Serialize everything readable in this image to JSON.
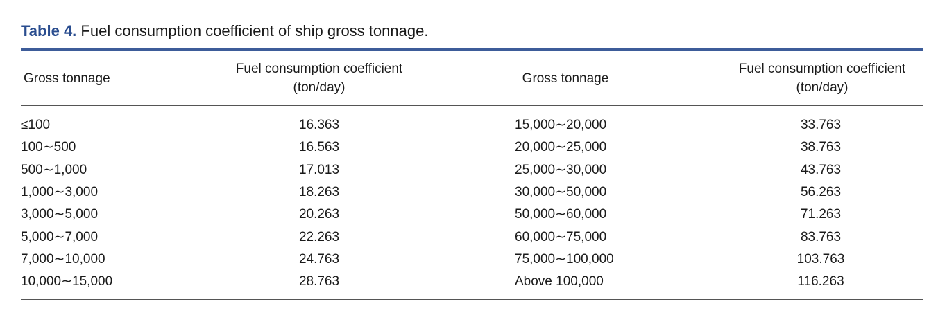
{
  "caption": {
    "label": "Table 4.",
    "text": "Fuel consumption coefficient of ship gross tonnage."
  },
  "headers": {
    "col1": "Gross tonnage",
    "col2_line1": "Fuel consumption coefficient",
    "col2_line2": "(ton/day)",
    "col3": "Gross tonnage",
    "col4_line1": "Fuel consumption coefficient",
    "col4_line2": "(ton/day)"
  },
  "rows": [
    {
      "tonnage_a": "≤100",
      "coef_a": "16.363",
      "tonnage_b": "15,000∼20,000",
      "coef_b": "33.763"
    },
    {
      "tonnage_a": "100∼500",
      "coef_a": "16.563",
      "tonnage_b": "20,000∼25,000",
      "coef_b": "38.763"
    },
    {
      "tonnage_a": "500∼1,000",
      "coef_a": "17.013",
      "tonnage_b": "25,000∼30,000",
      "coef_b": "43.763"
    },
    {
      "tonnage_a": "1,000∼3,000",
      "coef_a": "18.263",
      "tonnage_b": "30,000∼50,000",
      "coef_b": "56.263"
    },
    {
      "tonnage_a": "3,000∼5,000",
      "coef_a": "20.263",
      "tonnage_b": "50,000∼60,000",
      "coef_b": "71.263"
    },
    {
      "tonnage_a": "5,000∼7,000",
      "coef_a": "22.263",
      "tonnage_b": "60,000∼75,000",
      "coef_b": "83.763"
    },
    {
      "tonnage_a": "7,000∼10,000",
      "coef_a": "24.763",
      "tonnage_b": "75,000∼100,000",
      "coef_b": "103.763"
    },
    {
      "tonnage_a": "10,000∼15,000",
      "coef_a": "28.763",
      "tonnage_b": "Above 100,000",
      "coef_b": "116.263"
    }
  ],
  "colors": {
    "caption_label": "#2a4d8f",
    "top_rule": "#3d5c99",
    "text": "#1a1a1a"
  }
}
